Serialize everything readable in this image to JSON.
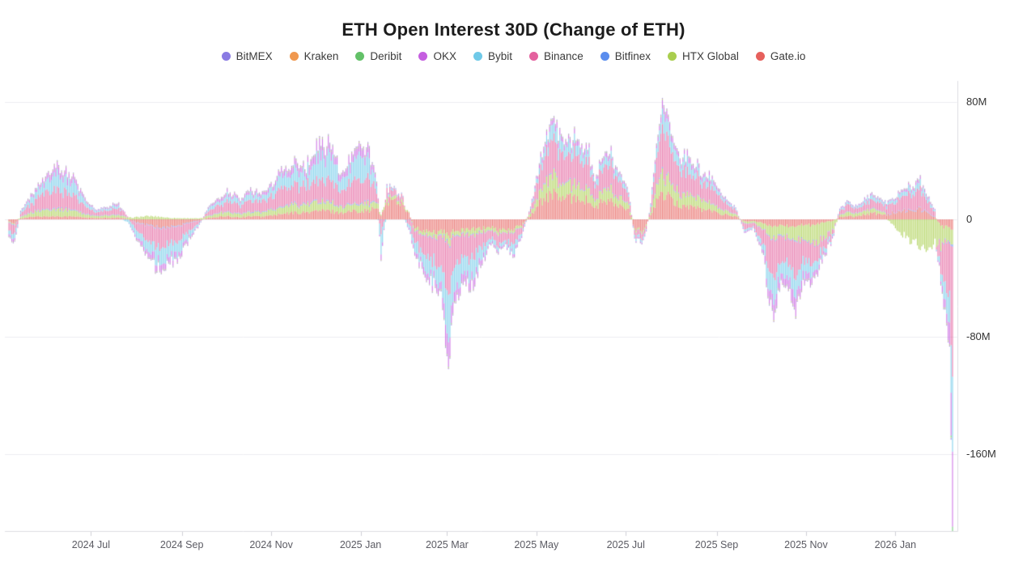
{
  "title": "ETH Open Interest 30D (Change of ETH)",
  "legend": [
    {
      "label": "BitMEX",
      "color": "#8A7BE3"
    },
    {
      "label": "Kraken",
      "color": "#F0984F"
    },
    {
      "label": "Deribit",
      "color": "#63C168"
    },
    {
      "label": "OKX",
      "color": "#C55EE0"
    },
    {
      "label": "Bybit",
      "color": "#6FC9E8"
    },
    {
      "label": "Binance",
      "color": "#E4619E"
    },
    {
      "label": "Bitfinex",
      "color": "#5A8DEE"
    },
    {
      "label": "HTX Global",
      "color": "#A9CE4E"
    },
    {
      "label": "Gate.io",
      "color": "#E6605C"
    }
  ],
  "chart_data": {
    "type": "bar",
    "stacked": true,
    "title": "ETH Open Interest 30D (Change of ETH)",
    "value_unit": "M (millions of ETH, 30-day change)",
    "ylim": [
      -212,
      95
    ],
    "grid": true,
    "legend_position": "top",
    "y_ticks": [
      {
        "label": "80M",
        "value": 80
      },
      {
        "label": "0",
        "value": 0
      },
      {
        "label": "-80M",
        "value": -80
      },
      {
        "label": "-160M",
        "value": -160
      }
    ],
    "x_ticks": [
      {
        "label": "2024 Jul",
        "day": 56
      },
      {
        "label": "2024 Sep",
        "day": 118
      },
      {
        "label": "2024 Nov",
        "day": 179
      },
      {
        "label": "2025 Jan",
        "day": 240
      },
      {
        "label": "2025 Mar",
        "day": 299
      },
      {
        "label": "2025 May",
        "day": 360
      },
      {
        "label": "2025 Jul",
        "day": 421
      },
      {
        "label": "2025 Sep",
        "day": 483
      },
      {
        "label": "2025 Nov",
        "day": 544
      },
      {
        "label": "2026 Jan",
        "day": 605
      }
    ],
    "time_range": {
      "start": "2024-05-06",
      "end": "2026-02-12",
      "days": 645
    },
    "stack_order": [
      "Gate.io",
      "HTX Global",
      "Bitfinex",
      "Binance",
      "Bybit",
      "OKX",
      "Deribit",
      "Kraken",
      "BitMEX"
    ],
    "series_columns": [
      "day",
      "BitMEX",
      "Kraken",
      "Deribit",
      "OKX",
      "Bybit",
      "Binance",
      "Bitfinex",
      "HTX Global",
      "Gate.io"
    ],
    "keyframes": [
      [
        0,
        -0.3,
        -0.2,
        -0.2,
        -1.5,
        -3,
        -5,
        -0.4,
        -0.5,
        -2
      ],
      [
        4,
        -0.4,
        -0.2,
        -0.3,
        -2,
        -4,
        -6.5,
        -0.5,
        -0.5,
        -2.5
      ],
      [
        8,
        0.2,
        0.1,
        0.2,
        0.5,
        1,
        2,
        0.3,
        0.8,
        0.7
      ],
      [
        14,
        0.3,
        0.2,
        0.2,
        1.5,
        3,
        5,
        0.4,
        2.5,
        1.5
      ],
      [
        21,
        0.4,
        0.2,
        0.3,
        2.5,
        6,
        8.5,
        0.5,
        4,
        2
      ],
      [
        28,
        0.5,
        0.3,
        0.3,
        3.5,
        9,
        11.5,
        0.6,
        5,
        2
      ],
      [
        34,
        0.6,
        0.3,
        0.4,
        4.5,
        10,
        12.5,
        0.7,
        5,
        2.2
      ],
      [
        40,
        0.5,
        0.3,
        0.3,
        3.8,
        9,
        11.5,
        0.6,
        4.5,
        2
      ],
      [
        47,
        0.4,
        0.2,
        0.3,
        2.5,
        6,
        8,
        0.5,
        3.5,
        1.8
      ],
      [
        54,
        0.3,
        0.2,
        0.2,
        1,
        2.5,
        4,
        0.4,
        2,
        1.2
      ],
      [
        60,
        0.2,
        0.1,
        0.1,
        0.5,
        1,
        2,
        0.3,
        1.2,
        0.8
      ],
      [
        67,
        0.2,
        0.1,
        0.2,
        0.8,
        1.5,
        3.5,
        0.3,
        1.5,
        1
      ],
      [
        74,
        0.3,
        0.2,
        0.2,
        1.2,
        2,
        4.5,
        0.4,
        1.8,
        1.2
      ],
      [
        80,
        0.1,
        0.1,
        0.1,
        0.3,
        -1.5,
        1.5,
        0.2,
        1,
        0.5
      ],
      [
        87,
        -0.3,
        -0.2,
        -0.2,
        -1.5,
        -4,
        -5,
        -0.4,
        1.5,
        -2
      ],
      [
        95,
        -0.4,
        -0.2,
        -0.3,
        -3.5,
        -8,
        -10,
        -0.5,
        2.2,
        -4
      ],
      [
        103,
        -0.5,
        -0.3,
        -0.3,
        -4.5,
        -10.5,
        -12.5,
        -0.6,
        1.8,
        -5.5
      ],
      [
        110,
        -0.5,
        -0.2,
        -0.3,
        -4,
        -9.5,
        -11.5,
        -0.6,
        1,
        -5
      ],
      [
        117,
        -0.4,
        -0.2,
        -0.3,
        -3,
        -7,
        -9,
        -0.5,
        0.8,
        -4
      ],
      [
        124,
        -0.3,
        -0.2,
        -0.2,
        -1.5,
        -3.5,
        -5,
        -0.4,
        0.8,
        -2
      ],
      [
        130,
        -0.1,
        -0.1,
        -0.1,
        -0.5,
        -1,
        -1.5,
        -0.2,
        0.6,
        -0.8
      ],
      [
        136,
        0.2,
        0.1,
        0.2,
        0.8,
        1.5,
        3,
        0.3,
        1.5,
        1
      ],
      [
        143,
        0.3,
        0.2,
        0.2,
        1.5,
        2.8,
        5,
        0.4,
        2.5,
        1.8
      ],
      [
        150,
        0.3,
        0.2,
        0.2,
        2,
        4,
        7,
        0.4,
        3,
        2
      ],
      [
        158,
        0.3,
        0.2,
        0.2,
        1.2,
        2.5,
        5,
        0.4,
        2.5,
        1.5
      ],
      [
        165,
        0.4,
        0.2,
        0.3,
        2.2,
        4.5,
        8,
        0.5,
        3,
        2.2
      ],
      [
        172,
        0.3,
        0.2,
        0.2,
        1.5,
        3,
        6,
        0.4,
        2.8,
        1.8
      ],
      [
        180,
        0.4,
        0.2,
        0.3,
        2.5,
        5.5,
        9.5,
        0.5,
        3.8,
        2.8
      ],
      [
        187,
        0.5,
        0.3,
        0.3,
        3.2,
        7.5,
        11.5,
        0.6,
        4.5,
        3.5
      ],
      [
        194,
        0.6,
        0.3,
        0.4,
        4.2,
        9.5,
        13.5,
        0.7,
        5,
        4.5
      ],
      [
        201,
        0.5,
        0.3,
        0.4,
        3.8,
        8.5,
        12,
        0.6,
        5,
        4.5
      ],
      [
        208,
        0.6,
        0.3,
        0.4,
        5.5,
        13,
        14,
        0.7,
        5.5,
        5.5
      ],
      [
        214,
        0.7,
        0.4,
        0.5,
        7.5,
        18,
        16,
        0.8,
        6,
        6
      ],
      [
        220,
        0.6,
        0.3,
        0.4,
        6.5,
        15,
        14.5,
        0.7,
        5.5,
        5.5
      ],
      [
        227,
        0.4,
        0.2,
        0.3,
        3.5,
        8,
        10,
        0.5,
        4,
        4.5
      ],
      [
        233,
        0.5,
        0.3,
        0.4,
        5,
        11,
        14,
        0.6,
        4.5,
        5.5
      ],
      [
        240,
        0.7,
        0.4,
        0.4,
        6.5,
        15,
        17.5,
        0.8,
        5,
        6
      ],
      [
        246,
        0.6,
        0.3,
        0.4,
        5.5,
        12,
        15.5,
        0.7,
        4.5,
        6
      ],
      [
        251,
        0.4,
        0.2,
        0.3,
        2,
        5,
        8,
        0.5,
        3.5,
        8
      ],
      [
        254,
        -0.3,
        -0.2,
        -0.2,
        -3,
        -12,
        -8,
        -0.4,
        1,
        2
      ],
      [
        258,
        0.2,
        0.1,
        0.2,
        0.8,
        1.5,
        5.5,
        0.3,
        2.5,
        12.5
      ],
      [
        264,
        0.2,
        0.1,
        0.1,
        0.5,
        0.8,
        4,
        0.3,
        2,
        13
      ],
      [
        269,
        0.1,
        0.1,
        0.1,
        0.3,
        0.5,
        3,
        0.2,
        1.5,
        10
      ],
      [
        273,
        -0.2,
        -0.1,
        -0.1,
        -1,
        -2.5,
        -4,
        -0.3,
        0.5,
        4
      ],
      [
        277,
        -0.3,
        -0.2,
        -0.2,
        -2,
        -5.5,
        -8.5,
        -0.4,
        -1.5,
        -6
      ],
      [
        283,
        -0.4,
        -0.2,
        -0.3,
        -3.5,
        -9,
        -13,
        -0.5,
        -2.5,
        -7.5
      ],
      [
        289,
        -0.5,
        -0.3,
        -0.3,
        -4.5,
        -12,
        -16,
        -0.6,
        -3,
        -8
      ],
      [
        295,
        -0.5,
        -0.3,
        -0.4,
        -5.5,
        -14,
        -17.5,
        -0.6,
        -3,
        -8.5
      ],
      [
        300,
        -0.8,
        -0.4,
        -0.5,
        -16,
        -30,
        -34,
        -1,
        -5,
        -11
      ],
      [
        304,
        -0.5,
        -0.3,
        -0.4,
        -7,
        -16,
        -19,
        -0.6,
        -3,
        -8
      ],
      [
        310,
        -0.5,
        -0.3,
        -0.3,
        -5,
        -13,
        -15,
        -0.6,
        -3,
        -7
      ],
      [
        316,
        -0.5,
        -0.3,
        -0.3,
        -6,
        -14.5,
        -15.5,
        -0.6,
        -3.5,
        -6.5
      ],
      [
        322,
        -0.4,
        -0.2,
        -0.3,
        -3.5,
        -8.5,
        -10.5,
        -0.5,
        -2.8,
        -6
      ],
      [
        328,
        -0.2,
        -0.1,
        -0.2,
        -1.2,
        -2.5,
        -4.5,
        -0.3,
        -2,
        -5
      ],
      [
        333,
        -0.3,
        -0.2,
        -0.2,
        -1.5,
        -3,
        -7.5,
        -0.4,
        -2.2,
        -7.5
      ],
      [
        339,
        -0.2,
        -0.1,
        -0.2,
        -1,
        -2,
        -6,
        -0.3,
        -2,
        -6.5
      ],
      [
        344,
        -0.3,
        -0.2,
        -0.2,
        -2,
        -6.5,
        -8,
        -0.4,
        -2,
        -6.5
      ],
      [
        350,
        -0.2,
        -0.1,
        -0.1,
        -1,
        -1.8,
        -4,
        -0.3,
        -1.5,
        -4
      ],
      [
        356,
        0.2,
        0.1,
        0.1,
        0.5,
        0.8,
        3,
        0.3,
        2,
        2.5
      ],
      [
        361,
        0.3,
        0.2,
        0.2,
        2,
        3.5,
        10,
        0.4,
        5,
        9.5
      ],
      [
        366,
        0.5,
        0.3,
        0.4,
        3,
        6.5,
        19.5,
        0.6,
        9,
        15
      ],
      [
        371,
        0.6,
        0.3,
        0.4,
        4,
        9.5,
        23,
        0.7,
        11,
        17
      ],
      [
        376,
        0.5,
        0.3,
        0.4,
        3.5,
        8,
        20.5,
        0.6,
        10,
        15
      ],
      [
        381,
        0.5,
        0.3,
        0.3,
        3,
        7,
        18.5,
        0.6,
        9,
        13.5
      ],
      [
        386,
        0.5,
        0.3,
        0.4,
        3.5,
        8,
        21,
        0.6,
        10,
        15.5
      ],
      [
        391,
        0.5,
        0.3,
        0.3,
        3,
        7,
        19,
        0.6,
        9,
        14
      ],
      [
        396,
        0.4,
        0.2,
        0.3,
        2.5,
        5.5,
        16.5,
        0.5,
        8,
        12.5
      ],
      [
        400,
        0.3,
        0.2,
        0.2,
        1.5,
        3,
        8.5,
        0.4,
        4.5,
        7
      ],
      [
        405,
        0.4,
        0.2,
        0.3,
        2.5,
        5.5,
        15.5,
        0.5,
        7.5,
        12
      ],
      [
        409,
        0.4,
        0.2,
        0.3,
        2.8,
        6,
        16.5,
        0.5,
        8,
        12.5
      ],
      [
        414,
        0.4,
        0.2,
        0.3,
        2,
        4.5,
        13,
        0.5,
        6.5,
        10
      ],
      [
        419,
        0.3,
        0.2,
        0.2,
        1.5,
        3,
        9.5,
        0.4,
        5,
        8
      ],
      [
        423,
        0.3,
        0.2,
        0.2,
        1,
        2,
        6.5,
        0.4,
        3.5,
        6
      ],
      [
        427,
        -0.2,
        -0.1,
        -0.1,
        -0.8,
        -1.5,
        -3.5,
        -0.3,
        -1,
        -6
      ],
      [
        431,
        -0.2,
        -0.1,
        -0.2,
        -1,
        -2,
        -4.5,
        -0.3,
        -1.2,
        -8
      ],
      [
        435,
        -0.1,
        -0.1,
        -0.1,
        -0.5,
        -1,
        -2,
        -0.2,
        -0.8,
        -3.5
      ],
      [
        438,
        0.2,
        0.1,
        0.1,
        0.5,
        1.5,
        4,
        0.3,
        2,
        2.5
      ],
      [
        442,
        0.5,
        0.3,
        0.3,
        3,
        7,
        19.5,
        0.6,
        9.5,
        13
      ],
      [
        446,
        0.7,
        0.4,
        0.5,
        5,
        11,
        29,
        0.8,
        13,
        16.5
      ],
      [
        450,
        0.6,
        0.4,
        0.4,
        4.5,
        10,
        26,
        0.7,
        12,
        15
      ],
      [
        454,
        0.5,
        0.3,
        0.3,
        3,
        7,
        18,
        0.6,
        9,
        11
      ],
      [
        459,
        0.4,
        0.2,
        0.3,
        2.5,
        5.5,
        15,
        0.5,
        7.5,
        9.5
      ],
      [
        464,
        0.4,
        0.3,
        0.3,
        3.5,
        6.5,
        16,
        0.5,
        8,
        9
      ],
      [
        469,
        0.4,
        0.2,
        0.3,
        2.8,
        5,
        13.5,
        0.5,
        7,
        8
      ],
      [
        474,
        0.3,
        0.2,
        0.2,
        2,
        3.5,
        10.5,
        0.4,
        5.5,
        6.5
      ],
      [
        479,
        0.3,
        0.2,
        0.2,
        2.5,
        4,
        11.5,
        0.4,
        5,
        6
      ],
      [
        484,
        0.3,
        0.2,
        0.2,
        1.5,
        2.5,
        7.5,
        0.4,
        3.5,
        4.5
      ],
      [
        490,
        0.2,
        0.1,
        0.2,
        1,
        1.5,
        5,
        0.3,
        2.5,
        3
      ],
      [
        496,
        0.2,
        0.1,
        0.1,
        0.5,
        1,
        3,
        0.3,
        1.5,
        2
      ],
      [
        502,
        -0.2,
        -0.1,
        -0.1,
        -0.8,
        -1.5,
        -3.5,
        -0.3,
        -1.5,
        -1.5
      ],
      [
        508,
        -0.1,
        -0.1,
        -0.1,
        -0.5,
        -1,
        -2.5,
        -0.2,
        -1.2,
        -1
      ],
      [
        514,
        -0.3,
        -0.2,
        -0.2,
        -2,
        -4,
        -8,
        -0.4,
        -3.5,
        -2.5
      ],
      [
        519,
        -0.6,
        -0.3,
        -0.4,
        -7,
        -13,
        -23,
        -0.7,
        -7,
        -5
      ],
      [
        523,
        -0.7,
        -0.4,
        -0.5,
        -9,
        -15,
        -26,
        -0.8,
        -8,
        -5.5
      ],
      [
        527,
        -0.5,
        -0.3,
        -0.3,
        -5,
        -9,
        -16,
        -0.6,
        -6.5,
        -4
      ],
      [
        532,
        -0.5,
        -0.3,
        -0.4,
        -6,
        -10,
        -17,
        -0.6,
        -7.5,
        -4.5
      ],
      [
        537,
        -0.7,
        -0.4,
        -0.5,
        -9.5,
        -14,
        -25,
        -0.8,
        -9,
        -5
      ],
      [
        542,
        -0.5,
        -0.3,
        -0.3,
        -4.5,
        -8,
        -14,
        -0.6,
        -9.5,
        -4
      ],
      [
        547,
        -0.5,
        -0.3,
        -0.3,
        -4,
        -8.5,
        -15,
        -0.6,
        -11.5,
        -4
      ],
      [
        552,
        -0.4,
        -0.2,
        -0.3,
        -3,
        -5.5,
        -11,
        -0.5,
        -12,
        -3
      ],
      [
        557,
        -0.3,
        -0.2,
        -0.2,
        -1.5,
        -2.5,
        -6,
        -0.4,
        -9.5,
        -2
      ],
      [
        562,
        -0.2,
        -0.1,
        -0.1,
        -1,
        -1.5,
        -3.5,
        -0.3,
        -6.5,
        -1.2
      ],
      [
        567,
        0.2,
        0.1,
        0.1,
        0.5,
        1,
        2.5,
        0.3,
        1.5,
        1.5
      ],
      [
        572,
        0.2,
        0.1,
        0.2,
        0.8,
        1.5,
        4,
        0.3,
        2.5,
        2.5
      ],
      [
        578,
        0.2,
        0.1,
        0.1,
        0.5,
        1,
        3,
        0.3,
        2,
        2
      ],
      [
        584,
        0.2,
        0.1,
        0.2,
        1,
        2,
        4.5,
        0.3,
        2.5,
        3.5
      ],
      [
        590,
        0.3,
        0.2,
        0.2,
        1.2,
        2.5,
        6,
        0.4,
        2.8,
        4.5
      ],
      [
        597,
        0.2,
        0.1,
        0.2,
        0.8,
        1.5,
        4.5,
        0.3,
        2,
        3
      ],
      [
        603,
        0.2,
        0.1,
        0.2,
        1,
        2,
        6.5,
        0.3,
        -3.5,
        4.5
      ],
      [
        609,
        0.3,
        0.2,
        0.2,
        1.2,
        2.8,
        8,
        0.4,
        -9.5,
        5.5
      ],
      [
        615,
        0.3,
        0.2,
        0.2,
        1.5,
        3.5,
        10,
        0.4,
        -15,
        6.5
      ],
      [
        621,
        0.4,
        0.2,
        0.3,
        1.8,
        4.5,
        12.5,
        0.5,
        -19,
        7
      ],
      [
        627,
        0.3,
        0.2,
        0.2,
        1.2,
        2.5,
        8,
        0.4,
        -21.5,
        4.5
      ],
      [
        632,
        0.2,
        0.1,
        0.1,
        0.5,
        1,
        3,
        0.3,
        -17.5,
        2
      ],
      [
        636,
        -0.4,
        -0.2,
        -0.3,
        -2.5,
        -6,
        -17,
        -0.5,
        -13.5,
        -4.5
      ],
      [
        639,
        -0.6,
        -0.3,
        -0.4,
        -7,
        -13,
        -29,
        -0.7,
        -11.5,
        -5.5
      ],
      [
        642,
        -0.8,
        -0.4,
        -0.6,
        -12,
        -19,
        -36,
        -0.9,
        -9.5,
        -6
      ],
      [
        644,
        -1.2,
        -0.6,
        -3,
        -48,
        -55,
        -84,
        -1.5,
        -8,
        -6
      ]
    ],
    "note": "Daily stacked bars (~645 days). Values in millions; keyframe envelope read from chart, daily bars interpolated."
  }
}
